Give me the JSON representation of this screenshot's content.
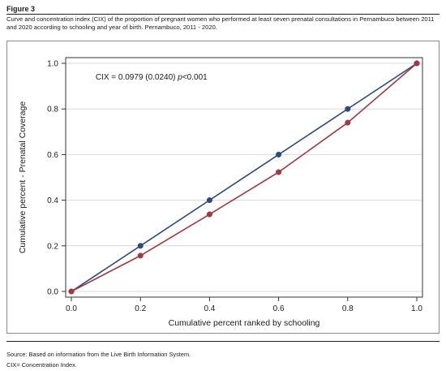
{
  "figure_label": "Figure 3",
  "caption": "Curve and concentration index (CIX) of the proportion of pregnant women who performed at least seven prenatal consultations in Pernambuco between 2011 and 2020 according to schooling and year of birth. Pernambuco, 2011 - 2020.",
  "notes": {
    "source": "Source: Based on information from the Live Birth Information System.",
    "abbrev": "CIX= Concentration Index."
  },
  "colors": {
    "equality": "#2f4b7c",
    "curve": "#9e3a43",
    "grid": "#d9d9d9",
    "axis": "#333333"
  },
  "chart_data": {
    "type": "line",
    "xlabel": "Cumulative percent ranked by schooling",
    "ylabel": "Cumulative percent - Prenatal Coverage",
    "xlim": [
      0,
      1
    ],
    "ylim": [
      0,
      1
    ],
    "x_ticks": [
      "0.0",
      "0.2",
      "0.4",
      "0.6",
      "0.8",
      "1.0"
    ],
    "y_ticks": [
      "0.0",
      "0.2",
      "0.4",
      "0.6",
      "0.8",
      "1.0"
    ],
    "grid": "horizontal",
    "annotation_parts": {
      "pre": "CIX = 0.0979 (0.0240) ",
      "p": "p",
      "post": "<0.001"
    },
    "series": [
      {
        "x": [
          0,
          0.2,
          0.4,
          0.6,
          0.8,
          1.0
        ],
        "y": [
          0,
          0.2,
          0.4,
          0.6,
          0.8,
          1.0
        ],
        "color": "#2f4b7c"
      },
      {
        "x": [
          0,
          0.2,
          0.4,
          0.6,
          0.8,
          1.0
        ],
        "y": [
          0,
          0.157,
          0.338,
          0.523,
          0.74,
          1.0
        ],
        "color": "#9e3a43"
      }
    ]
  }
}
